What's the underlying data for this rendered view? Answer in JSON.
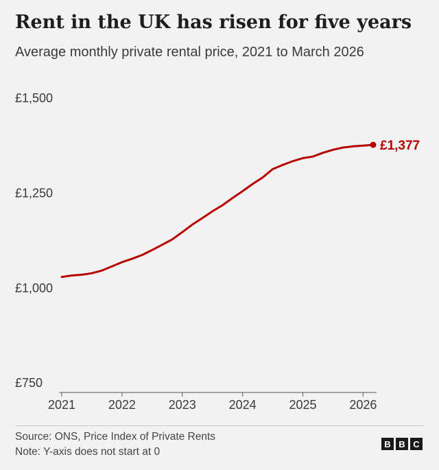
{
  "header": {
    "title": "Rent in the UK has risen for five years",
    "subtitle": "Average monthly private rental price, 2021 to March 2026"
  },
  "footer": {
    "source": "Source: ONS, Price Index of Private Rents",
    "note": "Note: Y-axis does not start at 0",
    "logo_letters": [
      "B",
      "B",
      "C"
    ]
  },
  "colors": {
    "series_line": "#b80000",
    "background": "#f2f2f2"
  },
  "chart_data": {
    "type": "line",
    "title": "Rent in the UK has risen for five years",
    "subtitle": "Average monthly private rental price, 2021 to March 2026",
    "xlabel": "",
    "ylabel": "",
    "x_ticks": [
      2021,
      2022,
      2023,
      2024,
      2025,
      2026
    ],
    "y_ticks": [
      {
        "value": 750,
        "label": "£750"
      },
      {
        "value": 1000,
        "label": "£1,000"
      },
      {
        "value": 1250,
        "label": "£1,250"
      },
      {
        "value": 1500,
        "label": "£1,500"
      }
    ],
    "xlim": [
      "2021-01",
      "2026-03"
    ],
    "ylim": [
      725,
      1500
    ],
    "grid": false,
    "series": [
      {
        "x": [
          "2021-01",
          "2021-03",
          "2021-05",
          "2021-07",
          "2021-09",
          "2021-11",
          "2022-01",
          "2022-03",
          "2022-05",
          "2022-07",
          "2022-09",
          "2022-11",
          "2023-01",
          "2023-03",
          "2023-05",
          "2023-07",
          "2023-09",
          "2023-11",
          "2024-01",
          "2024-03",
          "2024-05",
          "2024-07",
          "2024-09",
          "2024-11",
          "2025-01",
          "2025-03",
          "2025-05",
          "2025-07",
          "2025-09",
          "2025-11",
          "2026-01",
          "2026-03"
        ],
        "values": [
          1029,
          1033,
          1035,
          1039,
          1046,
          1057,
          1068,
          1077,
          1087,
          1100,
          1114,
          1128,
          1147,
          1167,
          1184,
          1202,
          1218,
          1237,
          1255,
          1274,
          1291,
          1313,
          1324,
          1334,
          1342,
          1346,
          1356,
          1364,
          1370,
          1373,
          1375,
          1377
        ]
      }
    ],
    "end_label": "£1,377"
  }
}
